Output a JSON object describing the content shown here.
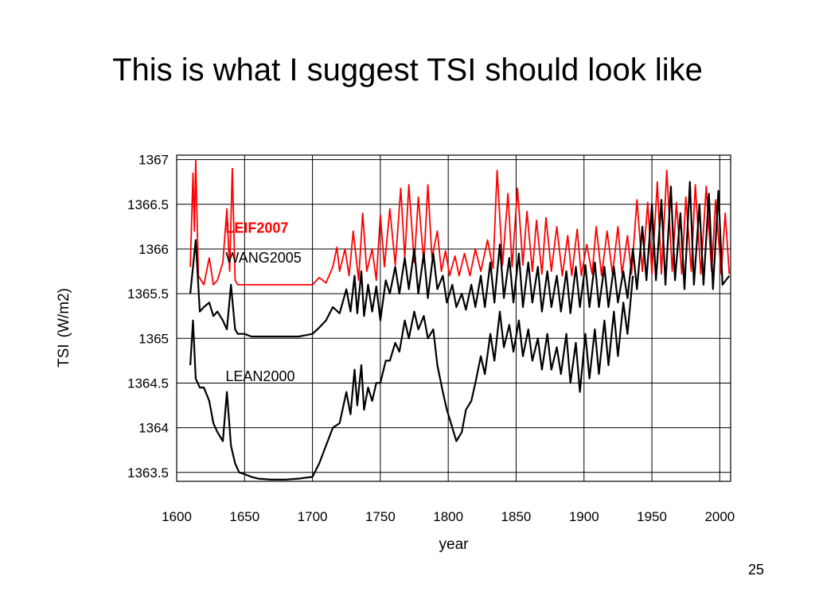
{
  "slide": {
    "title": "This is what I suggest TSI should look like",
    "page_number": "25"
  },
  "chart_data": {
    "type": "line",
    "xlabel": "year",
    "ylabel": "TSI",
    "ylabel_unit": "(W/m2)",
    "xlim": [
      1600,
      2008
    ],
    "ylim": [
      1363.4,
      1367.05
    ],
    "xticks": [
      1600,
      1650,
      1700,
      1750,
      1800,
      1850,
      1900,
      1950,
      2000
    ],
    "xtick_labels": [
      "1600",
      "1650",
      "1700",
      "1750",
      "1800",
      "1850",
      "1900",
      "1950",
      "2000"
    ],
    "yticks": [
      1363.5,
      1364,
      1364.5,
      1365,
      1365.5,
      1366,
      1366.5,
      1367
    ],
    "ytick_labels": [
      "1363.5",
      "1364",
      "1364.5",
      "1365",
      "1365.5",
      "1366",
      "1366.5",
      "1367"
    ],
    "grid": true,
    "colors": {
      "leif": "#ff0000",
      "wang": "#000000",
      "lean": "#000000"
    },
    "series": [
      {
        "name": "LEIF2007",
        "color": "#ff0000",
        "x": [
          1610,
          1612,
          1613,
          1614,
          1616,
          1620,
          1624,
          1627,
          1630,
          1634,
          1637,
          1639,
          1641,
          1643,
          1645,
          1650,
          1655,
          1660,
          1670,
          1680,
          1690,
          1700,
          1705,
          1710,
          1715,
          1718,
          1720,
          1724,
          1727,
          1730,
          1734,
          1737,
          1740,
          1744,
          1747,
          1750,
          1753,
          1757,
          1761,
          1765,
          1768,
          1771,
          1775,
          1778,
          1782,
          1785,
          1788,
          1792,
          1795,
          1798,
          1801,
          1805,
          1808,
          1812,
          1816,
          1820,
          1824,
          1829,
          1833,
          1836,
          1840,
          1844,
          1847,
          1851,
          1855,
          1858,
          1862,
          1865,
          1869,
          1872,
          1876,
          1880,
          1884,
          1888,
          1891,
          1895,
          1898,
          1902,
          1906,
          1909,
          1913,
          1917,
          1921,
          1925,
          1928,
          1932,
          1935,
          1939,
          1943,
          1947,
          1950,
          1954,
          1957,
          1961,
          1965,
          1968,
          1972,
          1975,
          1979,
          1982,
          1986,
          1990,
          1994,
          1997,
          2001,
          2004,
          2007
        ],
        "values": [
          1365.8,
          1366.85,
          1366.2,
          1367.0,
          1365.7,
          1365.6,
          1365.9,
          1365.6,
          1365.65,
          1365.85,
          1366.45,
          1365.75,
          1366.9,
          1365.65,
          1365.6,
          1365.6,
          1365.6,
          1365.6,
          1365.6,
          1365.6,
          1365.6,
          1365.6,
          1365.68,
          1365.62,
          1365.8,
          1366.02,
          1365.75,
          1366.0,
          1365.7,
          1366.2,
          1365.65,
          1366.4,
          1365.75,
          1366.0,
          1365.65,
          1366.38,
          1365.8,
          1366.45,
          1365.82,
          1366.68,
          1365.9,
          1366.72,
          1365.85,
          1366.58,
          1365.85,
          1366.72,
          1365.9,
          1366.2,
          1365.75,
          1365.98,
          1365.7,
          1365.92,
          1365.7,
          1365.95,
          1365.7,
          1366.0,
          1365.75,
          1366.1,
          1365.78,
          1366.88,
          1365.82,
          1366.62,
          1365.8,
          1366.68,
          1365.82,
          1366.42,
          1365.75,
          1366.32,
          1365.72,
          1366.35,
          1365.75,
          1366.25,
          1365.7,
          1366.15,
          1365.7,
          1366.22,
          1365.7,
          1366.05,
          1365.72,
          1366.25,
          1365.7,
          1366.2,
          1365.72,
          1366.25,
          1365.72,
          1366.15,
          1365.72,
          1366.55,
          1365.75,
          1366.52,
          1365.72,
          1366.75,
          1365.72,
          1366.88,
          1365.75,
          1366.52,
          1365.72,
          1366.58,
          1365.75,
          1366.72,
          1365.72,
          1366.7,
          1365.75,
          1366.55,
          1365.72,
          1366.4,
          1365.72
        ]
      },
      {
        "name": "WANG2005",
        "color": "#000000",
        "x": [
          1610,
          1612,
          1614,
          1617,
          1620,
          1624,
          1627,
          1630,
          1634,
          1637,
          1640,
          1643,
          1645,
          1650,
          1655,
          1660,
          1670,
          1680,
          1690,
          1700,
          1705,
          1710,
          1715,
          1720,
          1725,
          1728,
          1731,
          1733,
          1736,
          1738,
          1741,
          1744,
          1747,
          1750,
          1754,
          1757,
          1761,
          1764,
          1768,
          1771,
          1775,
          1778,
          1782,
          1785,
          1789,
          1792,
          1796,
          1799,
          1803,
          1806,
          1810,
          1813,
          1817,
          1820,
          1824,
          1827,
          1831,
          1834,
          1838,
          1841,
          1845,
          1848,
          1852,
          1855,
          1859,
          1862,
          1866,
          1869,
          1873,
          1876,
          1880,
          1883,
          1887,
          1890,
          1894,
          1897,
          1901,
          1904,
          1908,
          1911,
          1915,
          1918,
          1922,
          1925,
          1929,
          1932,
          1936,
          1939,
          1943,
          1946,
          1950,
          1953,
          1957,
          1960,
          1964,
          1967,
          1971,
          1974,
          1978,
          1981,
          1985,
          1988,
          1992,
          1995,
          1999,
          2002,
          2007
        ],
        "values": [
          1365.5,
          1365.8,
          1366.1,
          1365.3,
          1365.35,
          1365.4,
          1365.25,
          1365.3,
          1365.2,
          1365.1,
          1365.6,
          1365.1,
          1365.05,
          1365.05,
          1365.02,
          1365.02,
          1365.02,
          1365.02,
          1365.02,
          1365.05,
          1365.12,
          1365.2,
          1365.35,
          1365.28,
          1365.55,
          1365.3,
          1365.7,
          1365.28,
          1365.75,
          1365.25,
          1365.6,
          1365.3,
          1365.58,
          1365.2,
          1365.65,
          1365.5,
          1365.8,
          1365.5,
          1365.9,
          1365.55,
          1366.0,
          1365.5,
          1365.95,
          1365.45,
          1365.95,
          1365.55,
          1365.7,
          1365.4,
          1365.6,
          1365.35,
          1365.5,
          1365.32,
          1365.6,
          1365.35,
          1365.7,
          1365.35,
          1365.85,
          1365.4,
          1366.05,
          1365.45,
          1365.9,
          1365.4,
          1365.95,
          1365.35,
          1365.85,
          1365.4,
          1365.8,
          1365.3,
          1365.75,
          1365.35,
          1365.7,
          1365.3,
          1365.75,
          1365.28,
          1365.8,
          1365.35,
          1365.82,
          1365.35,
          1365.85,
          1365.35,
          1365.8,
          1365.35,
          1365.8,
          1365.4,
          1365.75,
          1365.45,
          1366.0,
          1365.55,
          1366.25,
          1365.65,
          1366.5,
          1365.65,
          1366.55,
          1365.6,
          1366.7,
          1365.65,
          1366.4,
          1365.55,
          1366.75,
          1365.6,
          1366.5,
          1365.6,
          1366.62,
          1365.55,
          1366.65,
          1365.6,
          1365.7
        ]
      },
      {
        "name": "LEAN2000",
        "color": "#000000",
        "x": [
          1610,
          1612,
          1614,
          1617,
          1620,
          1624,
          1627,
          1630,
          1634,
          1637,
          1640,
          1643,
          1646,
          1650,
          1655,
          1660,
          1670,
          1680,
          1690,
          1700,
          1705,
          1710,
          1715,
          1720,
          1725,
          1728,
          1731,
          1733,
          1736,
          1738,
          1741,
          1744,
          1747,
          1750,
          1754,
          1757,
          1761,
          1764,
          1768,
          1771,
          1775,
          1778,
          1782,
          1785,
          1789,
          1792,
          1796,
          1799,
          1803,
          1806,
          1810,
          1813,
          1817,
          1820,
          1824,
          1827,
          1831,
          1834,
          1838,
          1841,
          1845,
          1848,
          1852,
          1855,
          1859,
          1862,
          1866,
          1869,
          1873,
          1876,
          1880,
          1883,
          1887,
          1890,
          1894,
          1897,
          1901,
          1904,
          1908,
          1911,
          1915,
          1918,
          1922,
          1925,
          1929,
          1932,
          1936
        ],
        "values": [
          1364.7,
          1365.2,
          1364.55,
          1364.45,
          1364.45,
          1364.3,
          1364.05,
          1363.95,
          1363.85,
          1364.4,
          1363.8,
          1363.6,
          1363.5,
          1363.48,
          1363.45,
          1363.43,
          1363.42,
          1363.42,
          1363.43,
          1363.45,
          1363.6,
          1363.8,
          1364.0,
          1364.05,
          1364.4,
          1364.15,
          1364.65,
          1364.25,
          1364.7,
          1364.2,
          1364.45,
          1364.3,
          1364.5,
          1364.5,
          1364.75,
          1364.75,
          1364.95,
          1364.85,
          1365.2,
          1365.0,
          1365.3,
          1365.1,
          1365.25,
          1365.0,
          1365.1,
          1364.7,
          1364.4,
          1364.2,
          1364.0,
          1363.85,
          1363.95,
          1364.2,
          1364.3,
          1364.5,
          1364.8,
          1364.6,
          1365.05,
          1364.75,
          1365.3,
          1364.9,
          1365.15,
          1364.85,
          1365.2,
          1364.8,
          1365.1,
          1364.75,
          1365.0,
          1364.65,
          1365.05,
          1364.65,
          1364.9,
          1364.6,
          1365.05,
          1364.5,
          1364.95,
          1364.4,
          1365.05,
          1364.55,
          1365.1,
          1364.6,
          1365.2,
          1364.7,
          1365.3,
          1364.8,
          1365.4,
          1365.05,
          1365.7
        ]
      }
    ],
    "annotations": [
      {
        "text": "LEIF2007",
        "x": 1636,
        "y": 1366.18,
        "color": "#ff0000"
      },
      {
        "text": "WANG2005",
        "x": 1636,
        "y": 1365.85,
        "color": "#000000"
      },
      {
        "text": "LEAN2000",
        "x": 1636,
        "y": 1364.52,
        "color": "#000000"
      }
    ]
  }
}
